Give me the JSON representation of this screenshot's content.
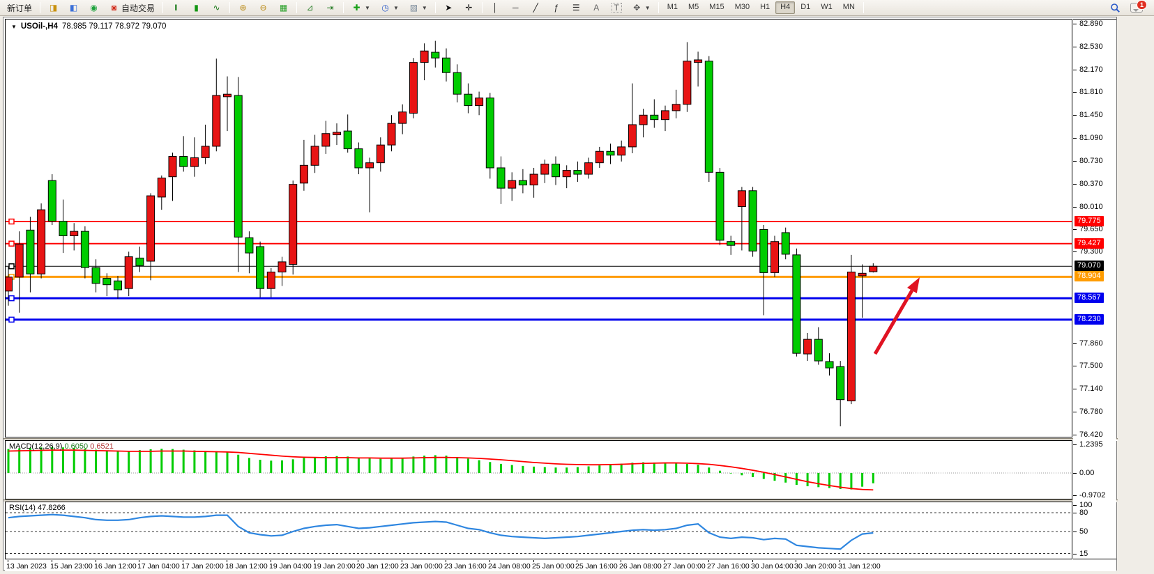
{
  "window": {
    "chart_title_symbol": "USOil-,H4",
    "chart_title_ohlc": "78.985 79.117 78.972 79.070"
  },
  "toolbar": {
    "new_order_label": "新订单",
    "auto_trading_label": "自动交易",
    "timeframes": [
      "M1",
      "M5",
      "M15",
      "M30",
      "H1",
      "H4",
      "D1",
      "W1",
      "MN"
    ],
    "active_timeframe": "H4",
    "notification_badge": "1",
    "icons": [
      "market-watch-icon",
      "navigator-icon",
      "signals-icon",
      "autotrading-icon",
      "bar-chart-icon",
      "candlestick-chart-icon",
      "line-chart-icon",
      "zoom-in-icon",
      "zoom-out-icon",
      "tile-windows-icon",
      "auto-scroll-icon",
      "chart-shift-icon",
      "add-indicator-icon",
      "periods-icon",
      "templates-icon",
      "cursor-icon",
      "crosshair-icon",
      "vertical-line-icon",
      "horizontal-line-icon",
      "trendline-icon",
      "channel-icon",
      "fibonacci-icon",
      "text-icon",
      "text-label-icon",
      "arrows-icon",
      "search-icon",
      "chat-icon"
    ]
  },
  "chart_data": {
    "type": "candlestick",
    "symbol": "USOil-",
    "timeframe": "H4",
    "colors": {
      "bull": "#e81414",
      "bear": "#00cc00",
      "wick": "#000000",
      "macd_histogram": "#00cc00",
      "macd_signal": "#ff0000",
      "rsi_line": "#2e86e0",
      "arrow": "#e01322",
      "background": "#ffffff"
    },
    "note": "bull candles drawn red, bear candles drawn green (CN color convention)",
    "y_axis_ticks": [
      "82.890",
      "82.530",
      "82.170",
      "81.810",
      "81.450",
      "81.090",
      "80.730",
      "80.370",
      "80.010",
      "79.650",
      "79.300",
      "77.860",
      "77.500",
      "77.140",
      "76.780",
      "76.420"
    ],
    "price_lines": [
      {
        "label": "79.775",
        "price": 79.775,
        "color": "#ff0000",
        "width": 2
      },
      {
        "label": "79.427",
        "price": 79.427,
        "color": "#ff0000",
        "width": 2
      },
      {
        "label": "79.070",
        "price": 79.07,
        "color": "#000000",
        "width": 1
      },
      {
        "label": "78.904",
        "price": 78.904,
        "color": "#ff9c00",
        "width": 3
      },
      {
        "label": "78.567",
        "price": 78.567,
        "color": "#0000ee",
        "width": 3
      },
      {
        "label": "78.230",
        "price": 78.23,
        "color": "#0000ee",
        "width": 3
      }
    ],
    "x_labels": [
      "13 Jan 2023",
      "15 Jan 23:00",
      "16 Jan 12:00",
      "17 Jan 04:00",
      "17 Jan 20:00",
      "18 Jan 12:00",
      "19 Jan 04:00",
      "19 Jan 20:00",
      "20 Jan 12:00",
      "23 Jan 00:00",
      "23 Jan 16:00",
      "24 Jan 08:00",
      "25 Jan 00:00",
      "25 Jan 16:00",
      "26 Jan 08:00",
      "27 Jan 00:00",
      "27 Jan 16:00",
      "30 Jan 04:00",
      "30 Jan 20:00",
      "31 Jan 12:00"
    ],
    "candles_ohlc": [
      [
        78.68,
        79.06,
        78.45,
        78.9
      ],
      [
        78.9,
        79.62,
        78.34,
        79.42
      ],
      [
        79.64,
        79.85,
        78.66,
        78.95
      ],
      [
        78.95,
        80.06,
        78.88,
        79.96
      ],
      [
        80.42,
        80.52,
        79.72,
        79.78
      ],
      [
        79.78,
        80.12,
        79.28,
        79.55
      ],
      [
        79.55,
        79.75,
        79.32,
        79.62
      ],
      [
        79.62,
        79.7,
        78.88,
        79.05
      ],
      [
        79.05,
        79.18,
        78.66,
        78.8
      ],
      [
        78.88,
        78.96,
        78.6,
        78.78
      ],
      [
        78.84,
        78.92,
        78.56,
        78.7
      ],
      [
        78.72,
        79.3,
        78.6,
        79.22
      ],
      [
        79.2,
        79.38,
        78.98,
        79.08
      ],
      [
        79.15,
        80.22,
        78.85,
        80.18
      ],
      [
        80.16,
        80.5,
        79.96,
        80.46
      ],
      [
        80.48,
        80.86,
        80.1,
        80.8
      ],
      [
        80.8,
        81.12,
        80.56,
        80.64
      ],
      [
        80.64,
        81.1,
        80.48,
        80.78
      ],
      [
        80.78,
        81.3,
        80.68,
        80.96
      ],
      [
        80.96,
        82.34,
        80.88,
        81.76
      ],
      [
        81.74,
        82.06,
        81.2,
        81.78
      ],
      [
        81.76,
        82.05,
        78.98,
        79.53
      ],
      [
        79.52,
        79.62,
        78.96,
        79.28
      ],
      [
        79.38,
        79.46,
        78.58,
        78.72
      ],
      [
        78.72,
        79.04,
        78.58,
        78.98
      ],
      [
        78.98,
        79.22,
        78.76,
        79.14
      ],
      [
        79.1,
        80.42,
        78.94,
        80.36
      ],
      [
        80.38,
        81.06,
        80.26,
        80.66
      ],
      [
        80.66,
        81.14,
        80.54,
        80.96
      ],
      [
        80.96,
        81.36,
        80.84,
        81.16
      ],
      [
        81.14,
        81.32,
        80.98,
        81.18
      ],
      [
        81.2,
        81.46,
        80.86,
        80.92
      ],
      [
        80.92,
        81.02,
        80.52,
        80.62
      ],
      [
        80.62,
        80.78,
        79.92,
        80.7
      ],
      [
        80.7,
        81.1,
        80.56,
        80.98
      ],
      [
        80.98,
        81.45,
        80.88,
        81.32
      ],
      [
        81.32,
        81.62,
        81.15,
        81.5
      ],
      [
        81.48,
        82.35,
        81.4,
        82.28
      ],
      [
        82.28,
        82.58,
        82.0,
        82.46
      ],
      [
        82.44,
        82.62,
        82.2,
        82.35
      ],
      [
        82.35,
        82.5,
        81.98,
        82.12
      ],
      [
        82.12,
        82.25,
        81.65,
        81.78
      ],
      [
        81.78,
        81.95,
        81.48,
        81.6
      ],
      [
        81.6,
        81.82,
        81.45,
        81.72
      ],
      [
        81.72,
        81.8,
        80.45,
        80.62
      ],
      [
        80.62,
        80.8,
        80.05,
        80.3
      ],
      [
        80.3,
        80.55,
        80.1,
        80.42
      ],
      [
        80.42,
        80.6,
        80.22,
        80.35
      ],
      [
        80.35,
        80.62,
        80.15,
        80.52
      ],
      [
        80.52,
        80.75,
        80.38,
        80.68
      ],
      [
        80.68,
        80.8,
        80.35,
        80.48
      ],
      [
        80.48,
        80.66,
        80.3,
        80.58
      ],
      [
        80.58,
        80.72,
        80.4,
        80.52
      ],
      [
        80.52,
        80.78,
        80.45,
        80.7
      ],
      [
        80.7,
        80.95,
        80.62,
        80.88
      ],
      [
        80.88,
        81.0,
        80.68,
        80.82
      ],
      [
        80.82,
        81.05,
        80.72,
        80.95
      ],
      [
        80.95,
        81.95,
        80.85,
        81.3
      ],
      [
        81.3,
        81.55,
        81.1,
        81.45
      ],
      [
        81.45,
        81.7,
        81.25,
        81.38
      ],
      [
        81.38,
        81.6,
        81.2,
        81.52
      ],
      [
        81.52,
        81.85,
        81.4,
        81.62
      ],
      [
        81.62,
        82.6,
        81.5,
        82.3
      ],
      [
        82.28,
        82.45,
        81.9,
        82.32
      ],
      [
        82.3,
        82.38,
        80.4,
        80.55
      ],
      [
        80.55,
        80.62,
        79.4,
        79.48
      ],
      [
        79.46,
        79.55,
        79.25,
        79.4
      ],
      [
        80.01,
        80.32,
        79.32,
        80.26
      ],
      [
        80.26,
        80.32,
        79.22,
        79.31
      ],
      [
        79.65,
        79.72,
        78.3,
        78.97
      ],
      [
        78.97,
        79.55,
        78.9,
        79.46
      ],
      [
        79.6,
        79.68,
        79.18,
        79.26
      ],
      [
        79.25,
        79.35,
        77.65,
        77.7
      ],
      [
        77.69,
        78.02,
        77.58,
        77.92
      ],
      [
        77.92,
        78.11,
        77.52,
        77.58
      ],
      [
        77.57,
        77.7,
        77.35,
        77.47
      ],
      [
        77.49,
        77.58,
        76.55,
        76.97
      ],
      [
        76.95,
        79.25,
        76.9,
        78.98
      ],
      [
        78.92,
        79.1,
        78.26,
        78.96
      ],
      [
        78.985,
        79.117,
        78.972,
        79.07
      ]
    ],
    "macd": {
      "label": "MACD(12,26,9)",
      "value_main": "0.6050",
      "value_signal": "0.6521",
      "y_ticks": [
        "1.2395",
        "0.00",
        "-0.9702"
      ],
      "histogram": [
        1.05,
        1.08,
        1.1,
        1.12,
        1.14,
        1.12,
        1.1,
        1.06,
        1.02,
        0.99,
        0.97,
        0.96,
        1.0,
        1.04,
        1.06,
        1.05,
        1.02,
        0.99,
        0.97,
        0.96,
        0.94,
        0.8,
        0.66,
        0.58,
        0.54,
        0.55,
        0.6,
        0.66,
        0.7,
        0.73,
        0.74,
        0.72,
        0.68,
        0.64,
        0.62,
        0.63,
        0.66,
        0.72,
        0.76,
        0.78,
        0.76,
        0.7,
        0.63,
        0.56,
        0.48,
        0.4,
        0.35,
        0.31,
        0.28,
        0.26,
        0.24,
        0.24,
        0.26,
        0.29,
        0.33,
        0.37,
        0.41,
        0.45,
        0.47,
        0.46,
        0.44,
        0.42,
        0.4,
        0.36,
        0.24,
        0.1,
        -0.02,
        -0.1,
        -0.18,
        -0.26,
        -0.34,
        -0.42,
        -0.52,
        -0.58,
        -0.62,
        -0.66,
        -0.7,
        -0.72,
        -0.6,
        -0.45
      ],
      "signal": [
        0.96,
        0.97,
        0.98,
        0.99,
        1.0,
        1.0,
        1.0,
        0.99,
        0.98,
        0.97,
        0.96,
        0.95,
        0.95,
        0.95,
        0.96,
        0.96,
        0.96,
        0.95,
        0.94,
        0.93,
        0.92,
        0.9,
        0.86,
        0.82,
        0.78,
        0.74,
        0.71,
        0.69,
        0.68,
        0.67,
        0.67,
        0.67,
        0.66,
        0.66,
        0.65,
        0.65,
        0.65,
        0.66,
        0.67,
        0.68,
        0.68,
        0.67,
        0.66,
        0.64,
        0.61,
        0.58,
        0.54,
        0.5,
        0.46,
        0.43,
        0.4,
        0.38,
        0.37,
        0.36,
        0.36,
        0.37,
        0.38,
        0.4,
        0.42,
        0.43,
        0.44,
        0.44,
        0.43,
        0.41,
        0.38,
        0.33,
        0.27,
        0.2,
        0.12,
        0.03,
        -0.07,
        -0.17,
        -0.28,
        -0.38,
        -0.47,
        -0.55,
        -0.62,
        -0.68,
        -0.72,
        -0.74
      ]
    },
    "rsi": {
      "label": "RSI(14)",
      "value": "47.8266",
      "levels": [
        80,
        50,
        15
      ],
      "y_ticks": [
        "100",
        "80",
        "50",
        "15"
      ],
      "series": [
        72,
        74,
        75,
        76,
        77,
        76,
        74,
        72,
        69,
        68,
        68,
        69,
        72,
        74,
        75,
        74,
        73,
        73,
        74,
        76,
        76,
        58,
        48,
        45,
        43,
        44,
        50,
        55,
        58,
        60,
        61,
        58,
        55,
        56,
        58,
        60,
        62,
        64,
        65,
        66,
        65,
        60,
        55,
        53,
        48,
        44,
        42,
        41,
        40,
        39,
        40,
        41,
        42,
        44,
        46,
        48,
        50,
        52,
        53,
        52,
        53,
        55,
        60,
        62,
        48,
        41,
        39,
        41,
        40,
        37,
        39,
        38,
        28,
        26,
        24,
        23,
        22,
        36,
        46,
        47.8
      ]
    },
    "annotation_arrow": {
      "from_xy": [
        1247,
        480
      ],
      "to_xy": [
        1311,
        370
      ],
      "color": "#e01322"
    }
  }
}
